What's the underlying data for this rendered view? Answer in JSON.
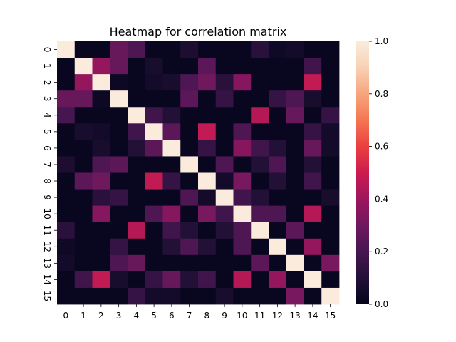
{
  "chart_data": {
    "type": "heatmap",
    "title": "Heatmap for correlation matrix",
    "x_tick_labels": [
      "0",
      "1",
      "2",
      "3",
      "4",
      "5",
      "6",
      "7",
      "8",
      "9",
      "10",
      "11",
      "12",
      "13",
      "14",
      "15"
    ],
    "y_tick_labels": [
      "0",
      "1",
      "2",
      "3",
      "4",
      "5",
      "6",
      "7",
      "8",
      "9",
      "10",
      "11",
      "12",
      "13",
      "14",
      "15"
    ],
    "colorbar": {
      "min": 0.0,
      "max": 1.0,
      "tick_values": [
        0.0,
        0.2,
        0.4,
        0.6,
        0.8,
        1.0
      ],
      "tick_labels": [
        "0.0",
        "0.2",
        "0.4",
        "0.6",
        "0.8",
        "1.0"
      ],
      "colormap": "rocket"
    },
    "matrix": [
      [
        1.0,
        0.02,
        0.02,
        0.28,
        0.22,
        0.02,
        0.02,
        0.08,
        0.02,
        0.02,
        0.02,
        0.12,
        0.04,
        0.05,
        0.02,
        0.02
      ],
      [
        0.02,
        1.0,
        0.38,
        0.28,
        0.02,
        0.07,
        0.02,
        0.02,
        0.25,
        0.02,
        0.02,
        0.02,
        0.02,
        0.02,
        0.18,
        0.02
      ],
      [
        0.02,
        0.38,
        1.0,
        0.03,
        0.02,
        0.05,
        0.07,
        0.22,
        0.3,
        0.12,
        0.35,
        0.02,
        0.02,
        0.02,
        0.48,
        0.02
      ],
      [
        0.28,
        0.28,
        0.03,
        1.0,
        0.02,
        0.02,
        0.02,
        0.25,
        0.02,
        0.15,
        0.02,
        0.02,
        0.15,
        0.22,
        0.07,
        0.02
      ],
      [
        0.2,
        0.02,
        0.02,
        0.02,
        1.0,
        0.18,
        0.1,
        0.02,
        0.02,
        0.02,
        0.02,
        0.45,
        0.02,
        0.28,
        0.02,
        0.15
      ],
      [
        0.02,
        0.07,
        0.05,
        0.02,
        0.18,
        1.0,
        0.25,
        0.02,
        0.48,
        0.02,
        0.22,
        0.02,
        0.02,
        0.02,
        0.15,
        0.05
      ],
      [
        0.02,
        0.02,
        0.07,
        0.02,
        0.1,
        0.25,
        1.0,
        0.02,
        0.15,
        0.02,
        0.35,
        0.18,
        0.1,
        0.02,
        0.28,
        0.05
      ],
      [
        0.08,
        0.02,
        0.22,
        0.25,
        0.02,
        0.02,
        0.02,
        1.0,
        0.02,
        0.22,
        0.02,
        0.1,
        0.22,
        0.02,
        0.1,
        0.02
      ],
      [
        0.02,
        0.25,
        0.3,
        0.02,
        0.02,
        0.48,
        0.15,
        0.02,
        1.0,
        0.05,
        0.32,
        0.02,
        0.1,
        0.02,
        0.18,
        0.02
      ],
      [
        0.02,
        0.02,
        0.12,
        0.15,
        0.02,
        0.02,
        0.02,
        0.22,
        0.05,
        1.0,
        0.18,
        0.1,
        0.02,
        0.02,
        0.02,
        0.07
      ],
      [
        0.02,
        0.02,
        0.35,
        0.02,
        0.02,
        0.22,
        0.35,
        0.02,
        0.32,
        0.18,
        1.0,
        0.22,
        0.22,
        0.02,
        0.45,
        0.02
      ],
      [
        0.12,
        0.02,
        0.02,
        0.02,
        0.45,
        0.02,
        0.18,
        0.1,
        0.02,
        0.1,
        0.22,
        1.0,
        0.02,
        0.25,
        0.02,
        0.02
      ],
      [
        0.04,
        0.02,
        0.02,
        0.15,
        0.02,
        0.02,
        0.1,
        0.22,
        0.1,
        0.02,
        0.22,
        0.02,
        1.0,
        0.02,
        0.38,
        0.02
      ],
      [
        0.05,
        0.02,
        0.02,
        0.22,
        0.28,
        0.02,
        0.02,
        0.02,
        0.02,
        0.02,
        0.02,
        0.25,
        0.02,
        1.0,
        0.02,
        0.32
      ],
      [
        0.02,
        0.18,
        0.48,
        0.07,
        0.02,
        0.15,
        0.28,
        0.1,
        0.18,
        0.02,
        0.45,
        0.02,
        0.38,
        0.02,
        1.0,
        0.02
      ],
      [
        0.02,
        0.02,
        0.02,
        0.02,
        0.15,
        0.05,
        0.05,
        0.02,
        0.02,
        0.07,
        0.02,
        0.02,
        0.02,
        0.32,
        0.02,
        1.0
      ]
    ]
  }
}
